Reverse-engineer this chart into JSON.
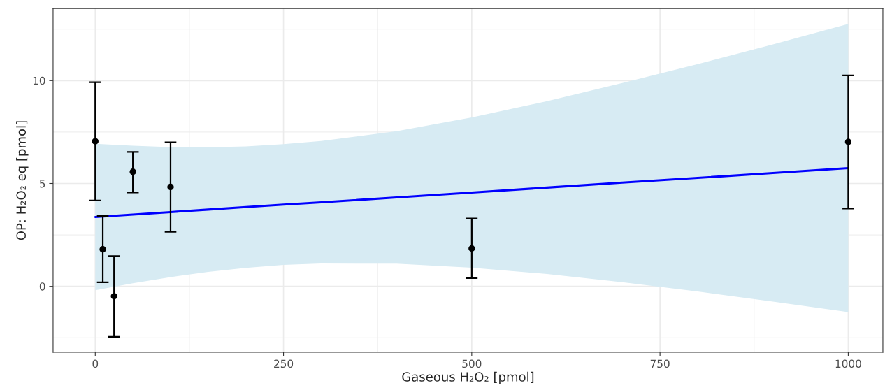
{
  "chart_data": {
    "type": "scatter",
    "xlabel": "Gaseous H₂O₂ [pmol]",
    "ylabel": "OP: H₂O₂ eq [pmol]",
    "xlim": [
      -56,
      1046
    ],
    "ylim": [
      -3.2,
      13.5
    ],
    "xticks": [
      0,
      250,
      500,
      750,
      1000
    ],
    "yticks": [
      0,
      5,
      10
    ],
    "grid": true,
    "series": [
      {
        "color": "#000000",
        "marker": "circle",
        "x": [
          0,
          10,
          25,
          50,
          100,
          500,
          1000
        ],
        "values": [
          7.05,
          1.8,
          -0.48,
          5.57,
          4.83,
          1.84,
          7.02
        ],
        "errors": [
          [
            4.17,
            9.92
          ],
          [
            0.2,
            3.42
          ],
          [
            -2.45,
            1.47
          ],
          [
            4.56,
            6.53
          ],
          [
            2.65,
            7.0
          ],
          [
            0.4,
            3.3
          ],
          [
            3.78,
            10.25
          ]
        ]
      },
      {
        "type": "line",
        "color": "#0000ff",
        "x": [
          0,
          50,
          100,
          150,
          200,
          250,
          300,
          400,
          500,
          600,
          700,
          800,
          900,
          1000
        ],
        "values": [
          3.37,
          3.49,
          3.61,
          3.73,
          3.85,
          3.97,
          4.08,
          4.32,
          4.56,
          4.8,
          5.04,
          5.27,
          5.51,
          5.75
        ],
        "lower": [
          -0.19,
          0.15,
          0.45,
          0.7,
          0.9,
          1.04,
          1.11,
          1.1,
          0.91,
          0.6,
          0.2,
          -0.25,
          -0.74,
          -1.25
        ],
        "upper": [
          6.93,
          6.83,
          6.77,
          6.76,
          6.8,
          6.91,
          7.06,
          7.54,
          8.21,
          9.0,
          9.88,
          10.8,
          11.76,
          12.75
        ]
      }
    ]
  }
}
